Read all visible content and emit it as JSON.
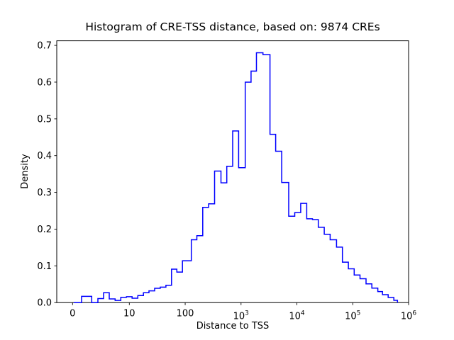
{
  "chart_data": {
    "type": "bar",
    "subtype": "step_histogram",
    "title": "Histogram of CRE-TSS distance, based on: 9874 CREs",
    "xlabel": "Distance to TSS",
    "ylabel": "Density",
    "xscale": "symlog",
    "linthresh": 10,
    "ylim": [
      0,
      0.7125
    ],
    "grid": false,
    "legend": "none",
    "line_color": "#0000ff",
    "background_color": "#ffffff",
    "spine_color": "#000000",
    "x_ticks": [
      {
        "value": 0,
        "label": "0"
      },
      {
        "value": 10,
        "label": "10"
      },
      {
        "value": 100,
        "label": "100"
      },
      {
        "value": 1000,
        "label": "10",
        "exp": "3"
      },
      {
        "value": 10000,
        "label": "10",
        "exp": "4"
      },
      {
        "value": 100000,
        "label": "10",
        "exp": "5"
      },
      {
        "value": 1000000,
        "label": "10",
        "exp": "6"
      }
    ],
    "y_ticks": [
      {
        "value": 0.0,
        "label": "0.0"
      },
      {
        "value": 0.1,
        "label": "0.1"
      },
      {
        "value": 0.2,
        "label": "0.2"
      },
      {
        "value": 0.3,
        "label": "0.3"
      },
      {
        "value": 0.4,
        "label": "0.4"
      },
      {
        "value": 0.5,
        "label": "0.5"
      },
      {
        "value": 0.6,
        "label": "0.6"
      },
      {
        "value": 0.7,
        "label": "0.7"
      }
    ],
    "bin_edges": [
      1.59,
      3.38,
      4.46,
      5.46,
      6.46,
      7.5,
      8.5,
      9.5,
      11.2,
      14.2,
      17.9,
      22.5,
      28.4,
      35.8,
      45.2,
      57,
      71,
      89.5,
      129,
      162,
      206,
      263,
      336,
      437,
      556,
      708,
      905,
      1190,
      1510,
      1890,
      2470,
      3300,
      4170,
      5350,
      7140,
      9160,
      11700,
      15000,
      19000,
      24200,
      30900,
      39400,
      51200,
      65300,
      83400,
      106000,
      135000,
      173000,
      220000,
      281000,
      341000,
      431000,
      544000,
      631000
    ],
    "densities": [
      0.017,
      0,
      0.011,
      0.027,
      0.01,
      0.006,
      0.0145,
      0.016,
      0.012,
      0.019,
      0.027,
      0.032,
      0.039,
      0.042,
      0.047,
      0.091,
      0.083,
      0.114,
      0.171,
      0.182,
      0.259,
      0.269,
      0.358,
      0.326,
      0.371,
      0.467,
      0.367,
      0.6,
      0.63,
      0.68,
      0.675,
      0.458,
      0.412,
      0.327,
      0.235,
      0.245,
      0.27,
      0.228,
      0.226,
      0.205,
      0.186,
      0.171,
      0.151,
      0.11,
      0.092,
      0.075,
      0.065,
      0.051,
      0.0395,
      0.03,
      0.0216,
      0.0139,
      0.0062
    ]
  }
}
